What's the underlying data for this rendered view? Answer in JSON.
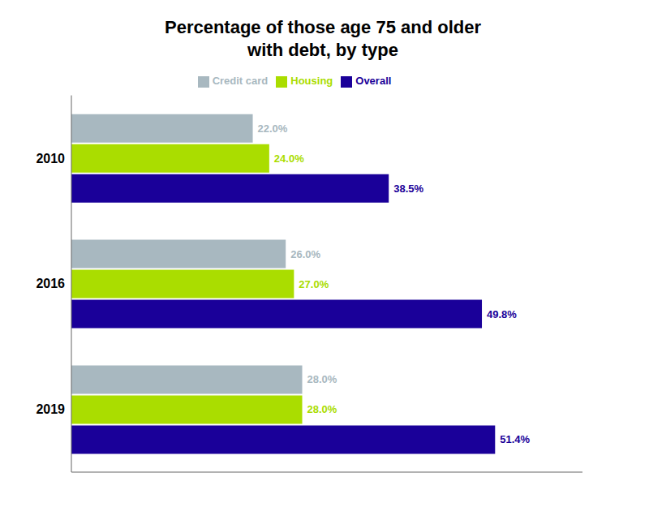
{
  "chart_data": {
    "type": "bar",
    "orientation": "horizontal",
    "title": "Percentage of those age 75 and older\nwith debt, by type",
    "categories": [
      "2010",
      "2016",
      "2019"
    ],
    "series": [
      {
        "name": "Credit card",
        "color": "#a8b8c0",
        "values": [
          22.0,
          26.0,
          28.0
        ],
        "value_labels": [
          "22.0%",
          "26.0%",
          "28.0%"
        ]
      },
      {
        "name": "Housing",
        "color": "#aadd00",
        "values": [
          24.0,
          27.0,
          28.0
        ],
        "value_labels": [
          "24.0%",
          "27.0%",
          "28.0%"
        ]
      },
      {
        "name": "Overall",
        "color": "#1a0099",
        "values": [
          38.5,
          49.8,
          51.4
        ],
        "value_labels": [
          "38.5%",
          "49.8%",
          "51.4%"
        ]
      }
    ],
    "xlim": [
      0,
      62
    ],
    "tick_labels": "y",
    "data_labels": true,
    "grid": false,
    "legend": "top"
  }
}
